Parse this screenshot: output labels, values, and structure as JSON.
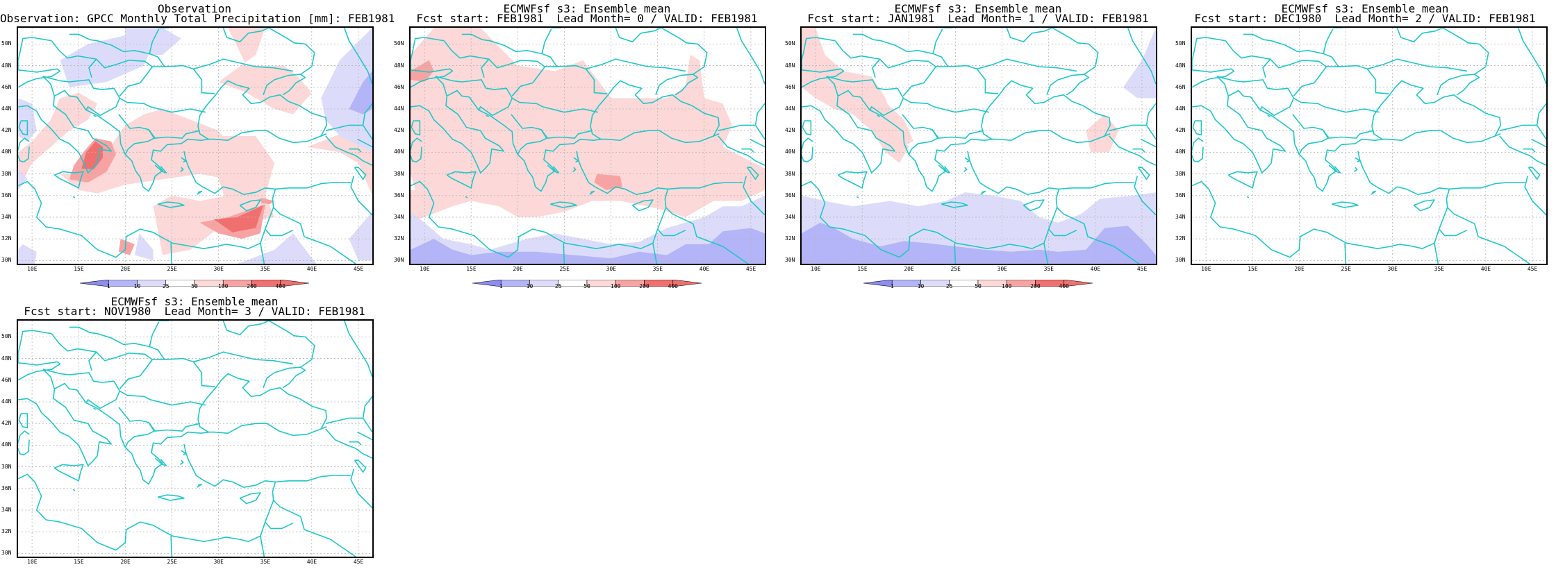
{
  "panels": [
    {
      "title1": "Observation",
      "title2": "Observation: GPCC Monthly Total Precipitation [mm]: FEB1981",
      "colorbar": true,
      "field": "obs"
    },
    {
      "title1": "ECMWFsf s3: Ensemble mean",
      "title2": "Fcst start: FEB1981  Lead Month= 0 / VALID: FEB1981",
      "colorbar": true,
      "field": "lead0"
    },
    {
      "title1": "ECMWFsf s3: Ensemble mean",
      "title2": "Fcst start: JAN1981  Lead Month= 1 / VALID: FEB1981",
      "colorbar": true,
      "field": "lead1"
    },
    {
      "title1": "ECMWFsf s3: Ensemble mean",
      "title2": "Fcst start: DEC1980  Lead Month= 2 / VALID: FEB1981",
      "colorbar": false,
      "field": "none"
    },
    {
      "title1": "ECMWFsf s3: Ensemble mean",
      "title2": "Fcst start: NOV1980  Lead Month= 3 / VALID: FEB1981",
      "colorbar": false,
      "field": "none"
    }
  ],
  "lat_labels": [
    "50N",
    "48N",
    "46N",
    "44N",
    "42N",
    "40N",
    "38N",
    "36N",
    "34N",
    "32N",
    "30N"
  ],
  "lon_labels": [
    "10E",
    "15E",
    "20E",
    "25E",
    "30E",
    "35E",
    "40E",
    "45E"
  ],
  "colorbar_labels": [
    "1",
    "10",
    "25",
    "50",
    "100",
    "200",
    "400"
  ],
  "colors": {
    "coast": "#1ec8c8",
    "grid": "#b4b4b4",
    "pink_light": "#fcd8d8",
    "pink_mid": "#f8a3a3",
    "red_dark": "#f07070",
    "blue_light": "#dcdcfa",
    "blue_mid": "#b4b4f8",
    "blue_dark": "#8c8cf2"
  }
}
